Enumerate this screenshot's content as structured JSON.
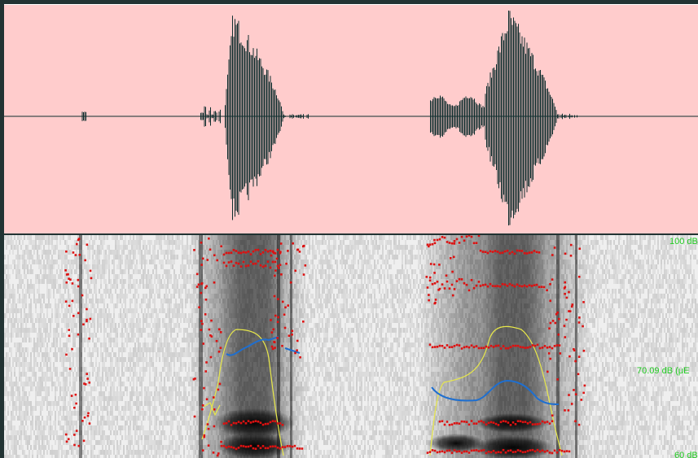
{
  "spectrogram": {
    "intensity_labels": {
      "top": "100 dB",
      "middle": "70.09 dB (μE",
      "bottom": "60 dB"
    }
  }
}
